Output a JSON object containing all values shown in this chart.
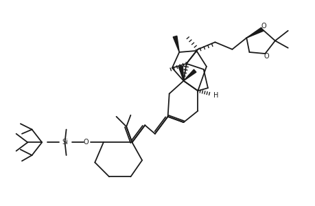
{
  "bg": "#ffffff",
  "lc": "#1a1a1a",
  "lw": 1.3,
  "fw": 4.6,
  "fh": 3.0,
  "dpi": 100,
  "xlim": [
    0.2,
    4.6
  ],
  "ylim": [
    0.3,
    3.0
  ],
  "fs": 7.0
}
